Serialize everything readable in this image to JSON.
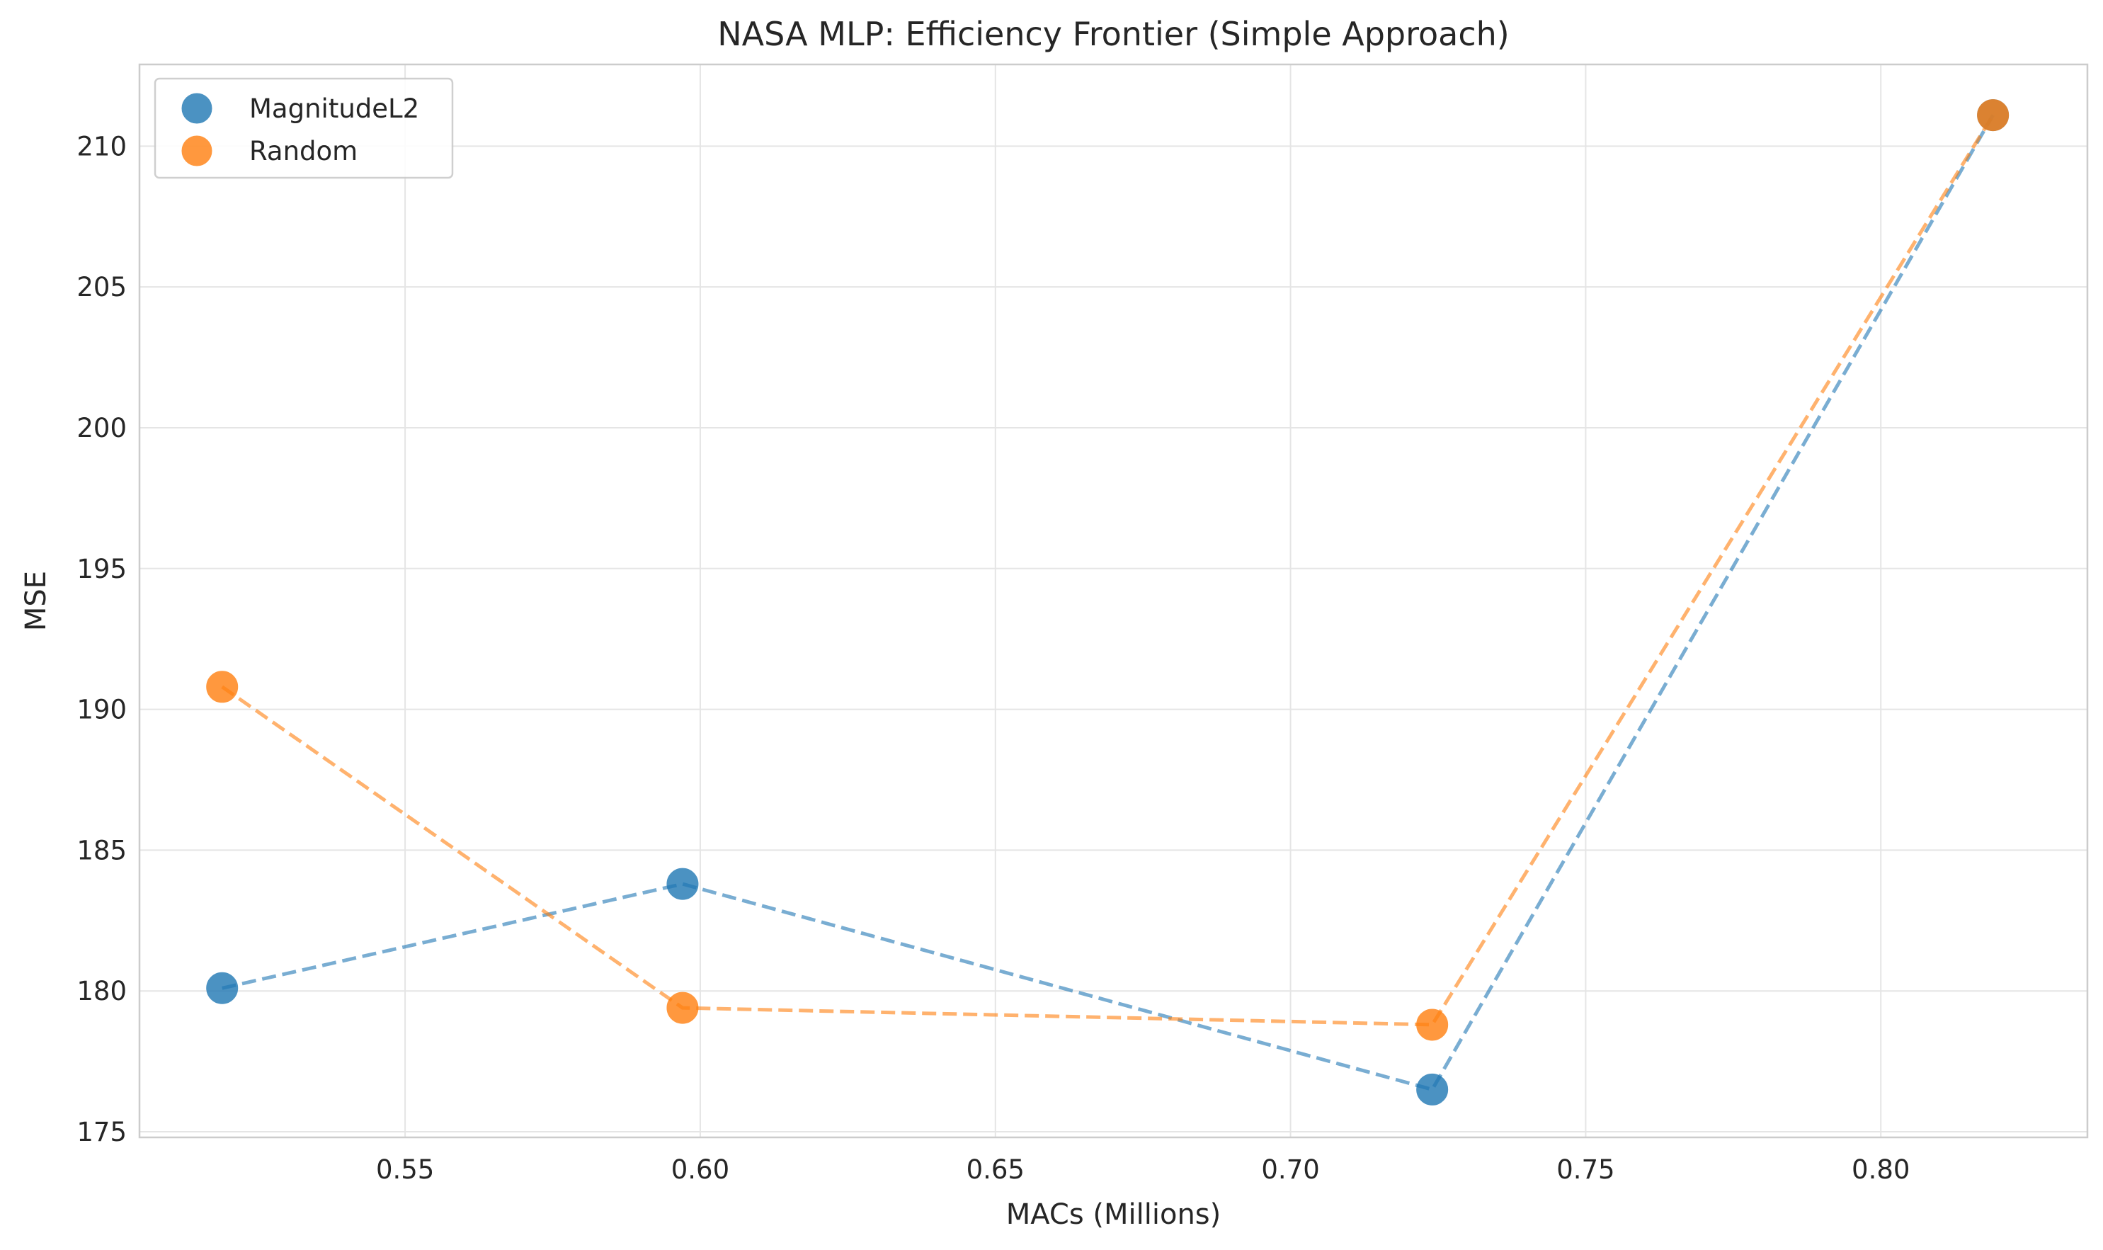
{
  "chart_data": {
    "type": "scatter",
    "title": "NASA MLP: Efficiency Frontier (Simple Approach)",
    "xlabel": "MACs (Millions)",
    "ylabel": "MSE",
    "xlim": [
      0.505,
      0.835
    ],
    "ylim": [
      174.8,
      212.9
    ],
    "xticks": [
      "0.55",
      "0.60",
      "0.65",
      "0.70",
      "0.75",
      "0.80"
    ],
    "yticks": [
      "175",
      "180",
      "185",
      "190",
      "195",
      "200",
      "205",
      "210"
    ],
    "grid": true,
    "legend_position": "top-left",
    "series": [
      {
        "name": "MagnitudeL2",
        "color": "#1f77b4",
        "linestyle": "dashed",
        "x": [
          0.519,
          0.597,
          0.724,
          0.819
        ],
        "y": [
          180.1,
          183.8,
          176.5,
          211.1
        ]
      },
      {
        "name": "Random",
        "color": "#ff7f0e",
        "linestyle": "dashed",
        "x": [
          0.519,
          0.597,
          0.724,
          0.819
        ],
        "y": [
          190.8,
          179.4,
          178.8,
          211.1
        ]
      }
    ]
  }
}
